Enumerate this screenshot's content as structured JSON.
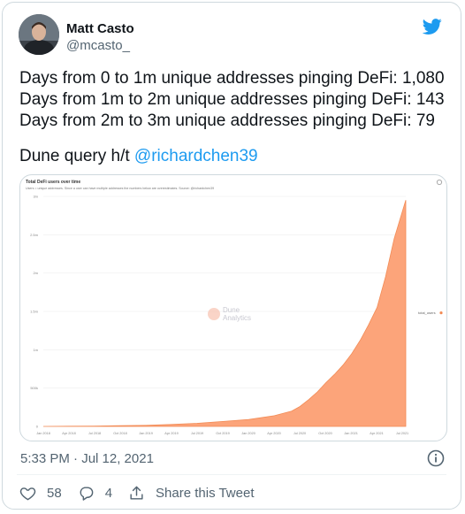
{
  "author": {
    "name": "Matt Casto",
    "handle": "@mcasto_"
  },
  "tweet": {
    "lines": [
      "Days from 0 to 1m unique addresses pinging DeFi: 1,080",
      "Days from 1m to 2m unique addresses pinging DeFi: 143",
      "Days from 2m to 3m unique addresses pinging DeFi: 79"
    ],
    "credit_prefix": "Dune query h/t ",
    "credit_mention": "@richardchen39"
  },
  "timestamp": "5:33 PM · Jul 12, 2021",
  "actions": {
    "like_count": "58",
    "reply_count": "4",
    "share_label": "Share this Tweet"
  },
  "colors": {
    "accent": "#1d9bf0",
    "area_fill": "#fca47a",
    "area_stroke": "#f28b55"
  },
  "icons": {
    "brand": "twitter-bird-icon",
    "info": "info-icon",
    "like": "heart-icon",
    "reply": "reply-icon",
    "share": "share-icon",
    "chart_settings": "gear-icon"
  },
  "chart_data": {
    "type": "area",
    "title": "Total DeFi users over time",
    "subtitle": "Users = unique addresses. Since a user can have multiple addresses the numbers below are overestimates. Source: @richardchen39",
    "watermark_line1": "Dune",
    "watermark_line2": "Analytics",
    "legend": [
      "total_users"
    ],
    "legend_position": "right",
    "grid": true,
    "ylim": [
      0,
      3000000
    ],
    "y_ticks": [
      0,
      500000,
      1000000,
      1500000,
      2000000,
      2500000,
      3000000
    ],
    "y_tick_labels": [
      "0",
      "500k",
      "1m",
      "1.5m",
      "2m",
      "2.5m",
      "3m"
    ],
    "x_tick_labels": [
      "Jan 2018",
      "Apr 2018",
      "Jul 2018",
      "Oct 2018",
      "Jan 2019",
      "Apr 2019",
      "Jul 2019",
      "Oct 2019",
      "Jan 2020",
      "Apr 2020",
      "Jul 2020",
      "Oct 2020",
      "Jan 2021",
      "Apr 2021",
      "Jul 2021"
    ],
    "series": [
      {
        "name": "total_users",
        "x": [
          "2018-01-01",
          "2018-04-01",
          "2018-07-01",
          "2018-10-01",
          "2019-01-01",
          "2019-04-01",
          "2019-07-01",
          "2019-10-01",
          "2020-01-01",
          "2020-04-01",
          "2020-06-01",
          "2020-07-01",
          "2020-08-01",
          "2020-09-01",
          "2020-10-01",
          "2020-11-01",
          "2020-12-01",
          "2021-01-01",
          "2021-02-01",
          "2021-03-01",
          "2021-04-01",
          "2021-05-01",
          "2021-06-01",
          "2021-07-12"
        ],
        "values": [
          0,
          2000,
          5000,
          9000,
          14000,
          25000,
          40000,
          65000,
          90000,
          140000,
          200000,
          260000,
          350000,
          450000,
          570000,
          680000,
          800000,
          950000,
          1130000,
          1320000,
          1550000,
          1950000,
          2450000,
          2950000
        ]
      }
    ]
  }
}
